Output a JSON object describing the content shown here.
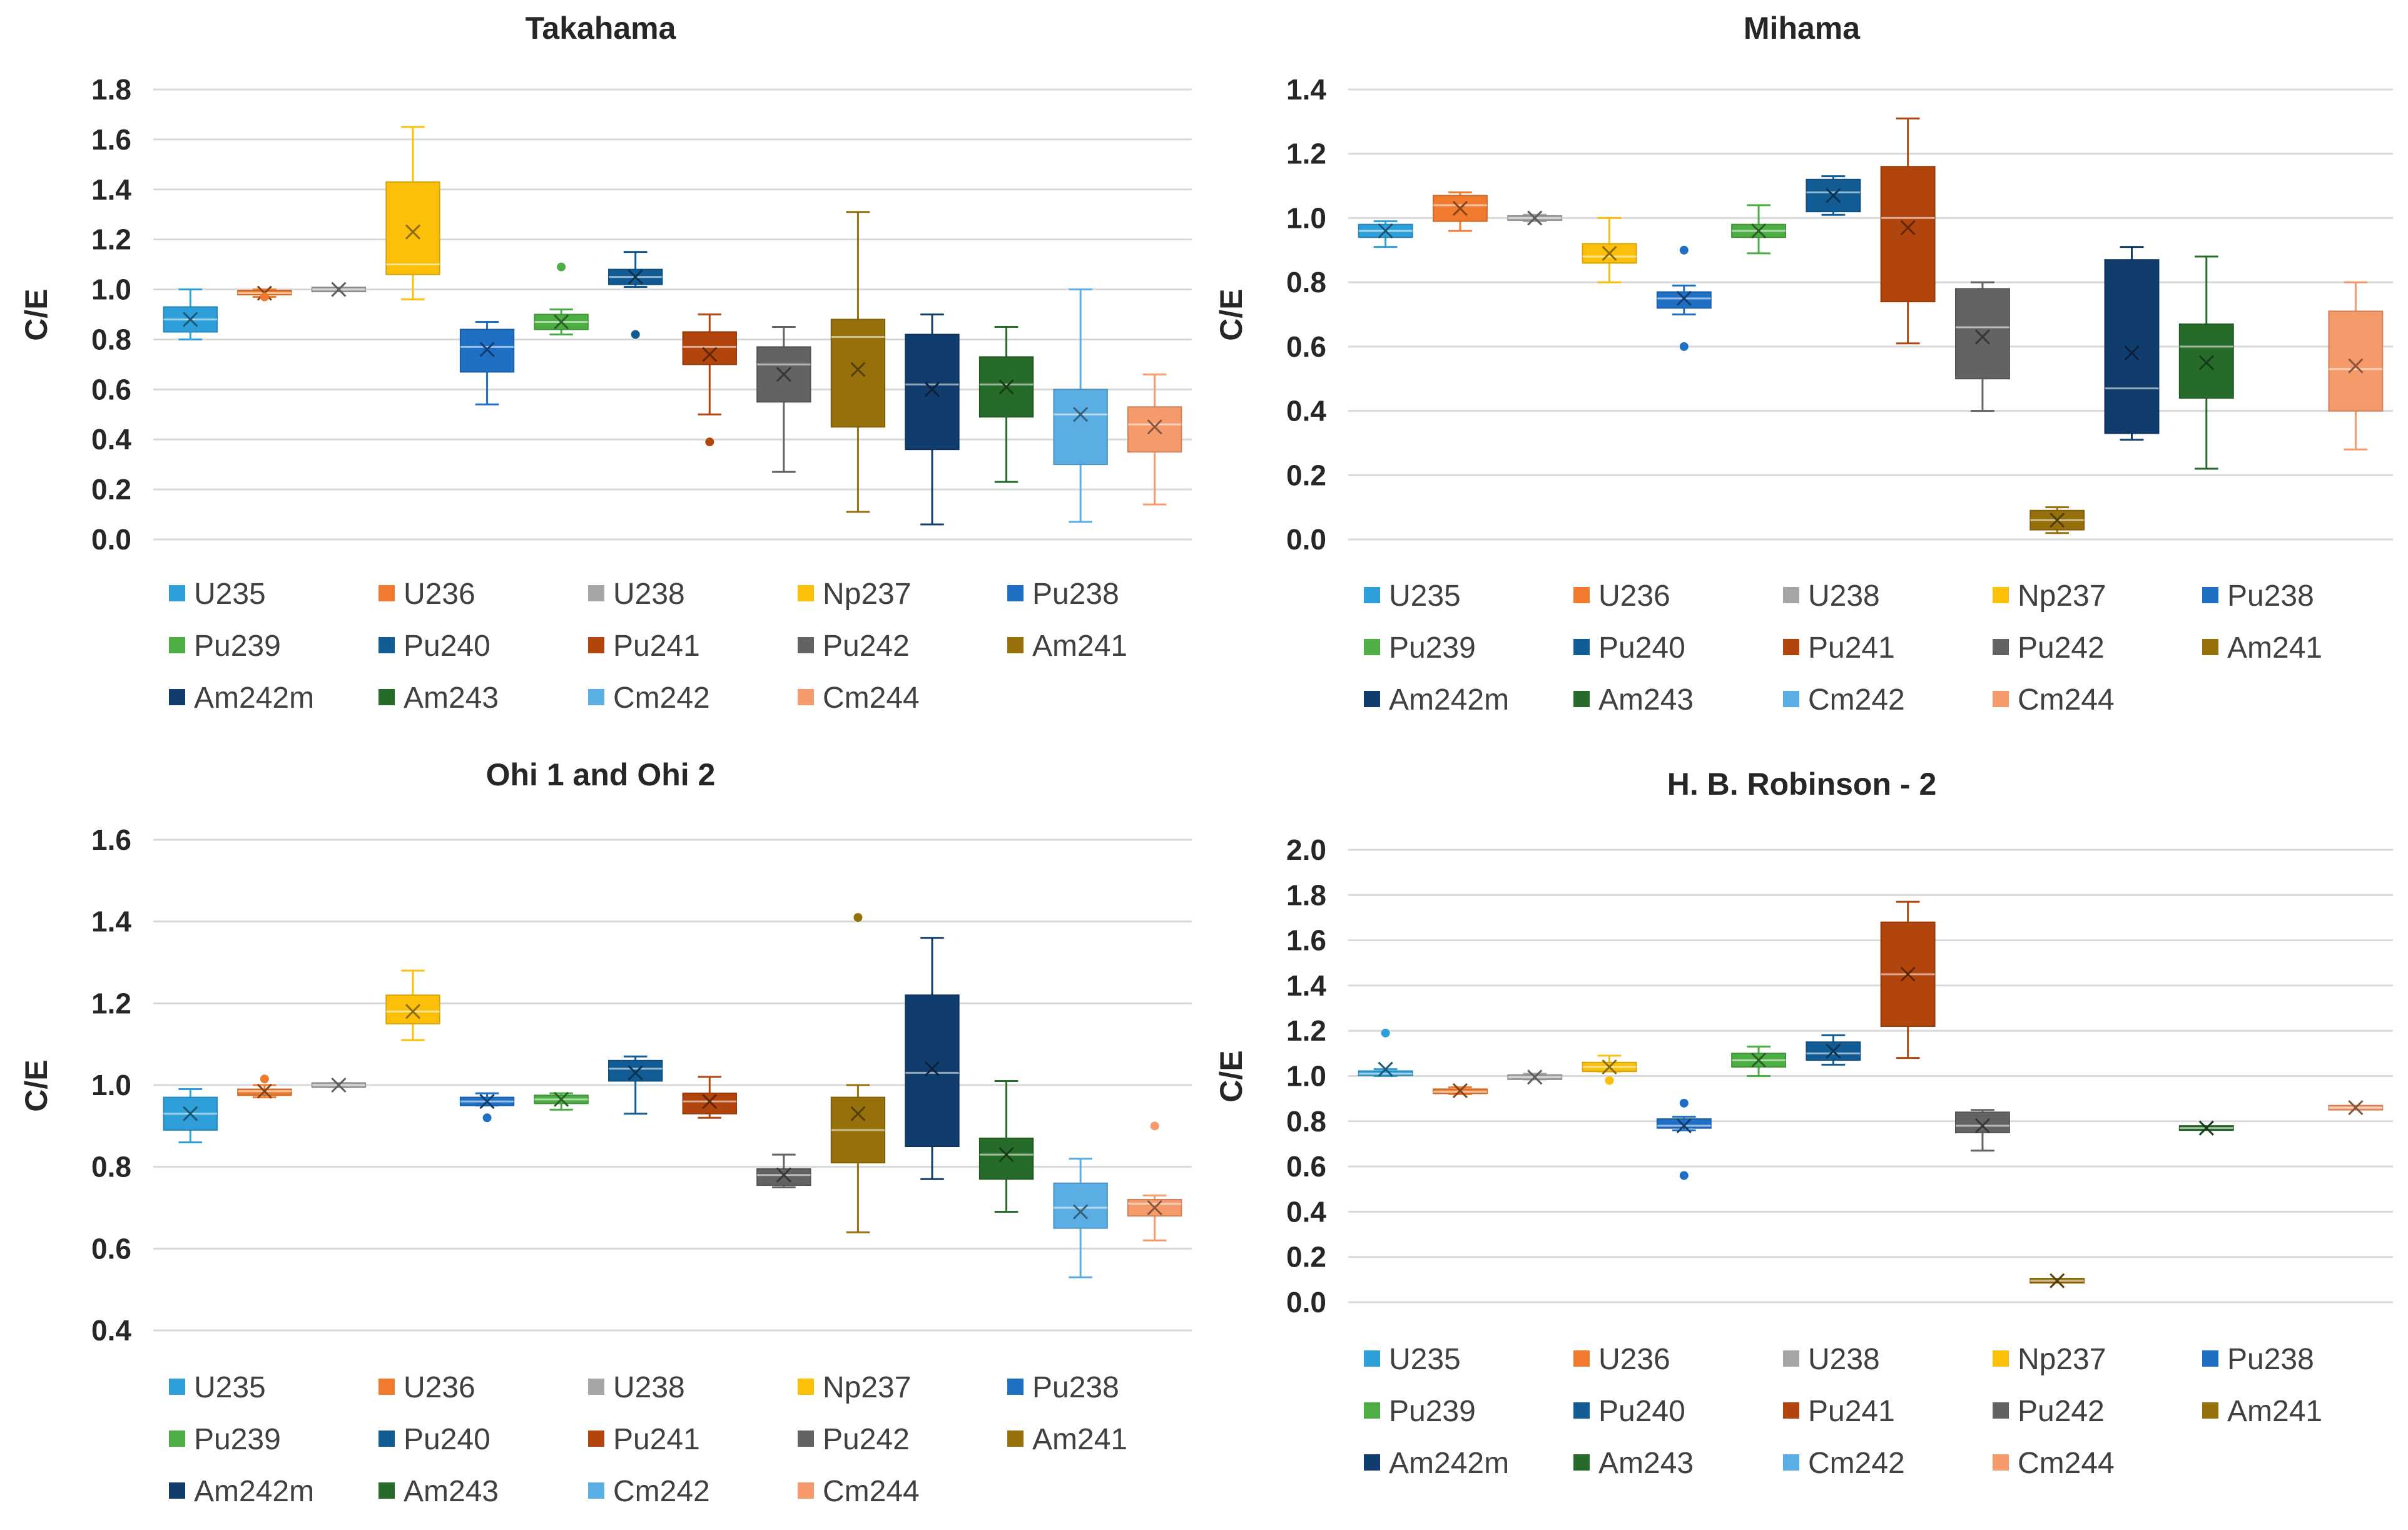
{
  "series_names": [
    "U235",
    "U236",
    "U238",
    "Np237",
    "Pu238",
    "Pu239",
    "Pu240",
    "Pu241",
    "Pu242",
    "Am241",
    "Am242m",
    "Am243",
    "Cm242",
    "Cm244"
  ],
  "series_colors": {
    "U235": "#2e9fd9",
    "U236": "#f07b2f",
    "U238": "#a6a6a6",
    "Np237": "#fcc00a",
    "Pu238": "#1f6fc4",
    "Pu239": "#4cae43",
    "Pu240": "#115c94",
    "Pu241": "#b2450d",
    "Pu242": "#636363",
    "Am241": "#96700a",
    "Am242m": "#113c6e",
    "Am243": "#276b2a",
    "Cm242": "#5aaee3",
    "Cm244": "#f59a6a"
  },
  "chart_data": [
    {
      "type": "box",
      "title": "Takahama",
      "ylabel": "C/E",
      "ylim": [
        0,
        1.8
      ],
      "yticks": [
        "0.0",
        "0.2",
        "0.4",
        "0.6",
        "0.8",
        "1.0",
        "1.2",
        "1.4",
        "1.6",
        "1.8"
      ],
      "legend_position": "bottom",
      "boxes": [
        {
          "series": "U235",
          "min": 0.8,
          "q1": 0.83,
          "median": 0.88,
          "q3": 0.93,
          "max": 1.0,
          "mean": 0.88,
          "outliers": []
        },
        {
          "series": "U236",
          "min": 0.97,
          "q1": 0.98,
          "median": 0.985,
          "q3": 0.995,
          "max": 1.0,
          "mean": 0.985,
          "outliers": [
            0.97
          ]
        },
        {
          "series": "U238",
          "min": 0.995,
          "q1": 0.998,
          "median": 1.0,
          "q3": 1.002,
          "max": 1.005,
          "mean": 1.0,
          "outliers": []
        },
        {
          "series": "Np237",
          "min": 0.96,
          "q1": 1.06,
          "median": 1.1,
          "q3": 1.43,
          "max": 1.65,
          "mean": 1.23,
          "outliers": []
        },
        {
          "series": "Pu238",
          "min": 0.54,
          "q1": 0.67,
          "median": 0.77,
          "q3": 0.84,
          "max": 0.87,
          "mean": 0.76,
          "outliers": []
        },
        {
          "series": "Pu239",
          "min": 0.82,
          "q1": 0.84,
          "median": 0.87,
          "q3": 0.9,
          "max": 0.92,
          "mean": 0.87,
          "outliers": [
            1.09
          ]
        },
        {
          "series": "Pu240",
          "min": 1.01,
          "q1": 1.02,
          "median": 1.05,
          "q3": 1.08,
          "max": 1.15,
          "mean": 1.05,
          "outliers": [
            0.82
          ]
        },
        {
          "series": "Pu241",
          "min": 0.5,
          "q1": 0.7,
          "median": 0.77,
          "q3": 0.83,
          "max": 0.9,
          "mean": 0.74,
          "outliers": [
            0.39
          ]
        },
        {
          "series": "Pu242",
          "min": 0.27,
          "q1": 0.55,
          "median": 0.7,
          "q3": 0.77,
          "max": 0.85,
          "mean": 0.66,
          "outliers": []
        },
        {
          "series": "Am241",
          "min": 0.11,
          "q1": 0.45,
          "median": 0.81,
          "q3": 0.88,
          "max": 1.31,
          "mean": 0.68,
          "outliers": []
        },
        {
          "series": "Am242m",
          "min": 0.06,
          "q1": 0.36,
          "median": 0.62,
          "q3": 0.82,
          "max": 0.9,
          "mean": 0.6,
          "outliers": []
        },
        {
          "series": "Am243",
          "min": 0.23,
          "q1": 0.49,
          "median": 0.62,
          "q3": 0.73,
          "max": 0.85,
          "mean": 0.61,
          "outliers": []
        },
        {
          "series": "Cm242",
          "min": 0.07,
          "q1": 0.3,
          "median": 0.5,
          "q3": 0.6,
          "max": 1.0,
          "mean": 0.5,
          "outliers": []
        },
        {
          "series": "Cm244",
          "min": 0.14,
          "q1": 0.35,
          "median": 0.46,
          "q3": 0.53,
          "max": 0.66,
          "mean": 0.45,
          "outliers": []
        }
      ]
    },
    {
      "type": "box",
      "title": "Mihama",
      "ylabel": "C/E",
      "ylim": [
        0,
        1.4
      ],
      "yticks": [
        "0.0",
        "0.2",
        "0.4",
        "0.6",
        "0.8",
        "1.0",
        "1.2",
        "1.4"
      ],
      "legend_position": "bottom",
      "boxes": [
        {
          "series": "U235",
          "min": 0.91,
          "q1": 0.94,
          "median": 0.96,
          "q3": 0.98,
          "max": 0.99,
          "mean": 0.96,
          "outliers": []
        },
        {
          "series": "U236",
          "min": 0.96,
          "q1": 0.99,
          "median": 1.04,
          "q3": 1.07,
          "max": 1.08,
          "mean": 1.03,
          "outliers": []
        },
        {
          "series": "U238",
          "min": 0.99,
          "q1": 0.995,
          "median": 1.0,
          "q3": 1.005,
          "max": 1.01,
          "mean": 1.0,
          "outliers": []
        },
        {
          "series": "Np237",
          "min": 0.8,
          "q1": 0.86,
          "median": 0.88,
          "q3": 0.92,
          "max": 1.0,
          "mean": 0.89,
          "outliers": []
        },
        {
          "series": "Pu238",
          "min": 0.7,
          "q1": 0.72,
          "median": 0.75,
          "q3": 0.77,
          "max": 0.79,
          "mean": 0.75,
          "outliers": [
            0.9,
            0.6
          ]
        },
        {
          "series": "Pu239",
          "min": 0.89,
          "q1": 0.94,
          "median": 0.96,
          "q3": 0.98,
          "max": 1.04,
          "mean": 0.96,
          "outliers": []
        },
        {
          "series": "Pu240",
          "min": 1.01,
          "q1": 1.02,
          "median": 1.08,
          "q3": 1.12,
          "max": 1.13,
          "mean": 1.07,
          "outliers": []
        },
        {
          "series": "Pu241",
          "min": 0.61,
          "q1": 0.74,
          "median": 1.0,
          "q3": 1.16,
          "max": 1.31,
          "mean": 0.97,
          "outliers": []
        },
        {
          "series": "Pu242",
          "min": 0.4,
          "q1": 0.5,
          "median": 0.66,
          "q3": 0.78,
          "max": 0.8,
          "mean": 0.63,
          "outliers": []
        },
        {
          "series": "Am241",
          "min": 0.02,
          "q1": 0.03,
          "median": 0.06,
          "q3": 0.09,
          "max": 0.1,
          "mean": 0.06,
          "outliers": []
        },
        {
          "series": "Am242m",
          "min": 0.31,
          "q1": 0.33,
          "median": 0.47,
          "q3": 0.87,
          "max": 0.91,
          "mean": 0.58,
          "outliers": []
        },
        {
          "series": "Am243",
          "min": 0.22,
          "q1": 0.44,
          "median": 0.6,
          "q3": 0.67,
          "max": 0.88,
          "mean": 0.55,
          "outliers": []
        },
        {
          "series": "Cm242",
          "min": null,
          "q1": null,
          "median": null,
          "q3": null,
          "max": null,
          "mean": null,
          "outliers": []
        },
        {
          "series": "Cm244",
          "min": 0.28,
          "q1": 0.4,
          "median": 0.53,
          "q3": 0.71,
          "max": 0.8,
          "mean": 0.54,
          "outliers": []
        }
      ]
    },
    {
      "type": "box",
      "title": "Ohi 1 and Ohi 2",
      "ylabel": "C/E",
      "ylim": [
        0.4,
        1.6
      ],
      "yticks": [
        "0.4",
        "0.6",
        "0.8",
        "1.0",
        "1.2",
        "1.4",
        "1.6"
      ],
      "legend_position": "bottom",
      "boxes": [
        {
          "series": "U235",
          "min": 0.86,
          "q1": 0.89,
          "median": 0.93,
          "q3": 0.97,
          "max": 0.99,
          "mean": 0.93,
          "outliers": []
        },
        {
          "series": "U236",
          "min": 0.97,
          "q1": 0.975,
          "median": 0.985,
          "q3": 0.99,
          "max": 1.0,
          "mean": 0.985,
          "outliers": [
            1.015
          ]
        },
        {
          "series": "U238",
          "min": 0.995,
          "q1": 0.998,
          "median": 1.0,
          "q3": 1.002,
          "max": 1.005,
          "mean": 1.0,
          "outliers": []
        },
        {
          "series": "Np237",
          "min": 1.11,
          "q1": 1.15,
          "median": 1.18,
          "q3": 1.22,
          "max": 1.28,
          "mean": 1.18,
          "outliers": []
        },
        {
          "series": "Pu238",
          "min": 0.95,
          "q1": 0.95,
          "median": 0.96,
          "q3": 0.97,
          "max": 0.98,
          "mean": 0.96,
          "outliers": [
            0.92
          ]
        },
        {
          "series": "Pu239",
          "min": 0.94,
          "q1": 0.955,
          "median": 0.965,
          "q3": 0.975,
          "max": 0.98,
          "mean": 0.965,
          "outliers": []
        },
        {
          "series": "Pu240",
          "min": 0.93,
          "q1": 1.01,
          "median": 1.04,
          "q3": 1.06,
          "max": 1.07,
          "mean": 1.03,
          "outliers": []
        },
        {
          "series": "Pu241",
          "min": 0.92,
          "q1": 0.93,
          "median": 0.96,
          "q3": 0.98,
          "max": 1.02,
          "mean": 0.96,
          "outliers": []
        },
        {
          "series": "Pu242",
          "min": 0.75,
          "q1": 0.755,
          "median": 0.78,
          "q3": 0.795,
          "max": 0.83,
          "mean": 0.78,
          "outliers": []
        },
        {
          "series": "Am241",
          "min": 0.64,
          "q1": 0.81,
          "median": 0.89,
          "q3": 0.97,
          "max": 1.0,
          "mean": 0.93,
          "outliers": [
            1.41
          ]
        },
        {
          "series": "Am242m",
          "min": 0.77,
          "q1": 0.85,
          "median": 1.03,
          "q3": 1.22,
          "max": 1.36,
          "mean": 1.04,
          "outliers": []
        },
        {
          "series": "Am243",
          "min": 0.69,
          "q1": 0.77,
          "median": 0.83,
          "q3": 0.87,
          "max": 1.01,
          "mean": 0.83,
          "outliers": []
        },
        {
          "series": "Cm242",
          "min": 0.53,
          "q1": 0.65,
          "median": 0.7,
          "q3": 0.76,
          "max": 0.82,
          "mean": 0.69,
          "outliers": []
        },
        {
          "series": "Cm244",
          "min": 0.62,
          "q1": 0.68,
          "median": 0.71,
          "q3": 0.72,
          "max": 0.73,
          "mean": 0.7,
          "outliers": [
            0.9
          ]
        }
      ]
    },
    {
      "type": "box",
      "title": "H. B. Robinson - 2",
      "ylabel": "C/E",
      "ylim": [
        0,
        2.0
      ],
      "yticks": [
        "0.0",
        "0.2",
        "0.4",
        "0.6",
        "0.8",
        "1.0",
        "1.2",
        "1.4",
        "1.6",
        "1.8",
        "2.0"
      ],
      "legend_position": "bottom",
      "boxes": [
        {
          "series": "U235",
          "min": 1.0,
          "q1": 1.005,
          "median": 1.01,
          "q3": 1.02,
          "max": 1.03,
          "mean": 1.03,
          "outliers": [
            1.19
          ]
        },
        {
          "series": "U236",
          "min": 0.92,
          "q1": 0.925,
          "median": 0.93,
          "q3": 0.94,
          "max": 0.95,
          "mean": 0.935,
          "outliers": []
        },
        {
          "series": "U238",
          "min": 0.985,
          "q1": 0.99,
          "median": 0.995,
          "q3": 1.0,
          "max": 1.01,
          "mean": 0.995,
          "outliers": []
        },
        {
          "series": "Np237",
          "min": 1.02,
          "q1": 1.02,
          "median": 1.04,
          "q3": 1.06,
          "max": 1.09,
          "mean": 1.04,
          "outliers": [
            0.98
          ]
        },
        {
          "series": "Pu238",
          "min": 0.76,
          "q1": 0.77,
          "median": 0.78,
          "q3": 0.81,
          "max": 0.82,
          "mean": 0.78,
          "outliers": [
            0.88,
            0.56
          ]
        },
        {
          "series": "Pu239",
          "min": 1.0,
          "q1": 1.04,
          "median": 1.07,
          "q3": 1.1,
          "max": 1.13,
          "mean": 1.07,
          "outliers": []
        },
        {
          "series": "Pu240",
          "min": 1.05,
          "q1": 1.07,
          "median": 1.1,
          "q3": 1.15,
          "max": 1.18,
          "mean": 1.11,
          "outliers": []
        },
        {
          "series": "Pu241",
          "min": 1.08,
          "q1": 1.22,
          "median": 1.45,
          "q3": 1.68,
          "max": 1.77,
          "mean": 1.45,
          "outliers": []
        },
        {
          "series": "Pu242",
          "min": 0.67,
          "q1": 0.75,
          "median": 0.78,
          "q3": 0.84,
          "max": 0.85,
          "mean": 0.78,
          "outliers": []
        },
        {
          "series": "Am241",
          "min": 0.095,
          "q1": 0.095,
          "median": 0.095,
          "q3": 0.095,
          "max": 0.095,
          "mean": 0.095,
          "outliers": []
        },
        {
          "series": "Am242m",
          "min": null,
          "q1": null,
          "median": null,
          "q3": null,
          "max": null,
          "mean": null,
          "outliers": []
        },
        {
          "series": "Am243",
          "min": 0.77,
          "q1": 0.77,
          "median": 0.77,
          "q3": 0.77,
          "max": 0.77,
          "mean": 0.77,
          "outliers": []
        },
        {
          "series": "Cm242",
          "min": null,
          "q1": null,
          "median": null,
          "q3": null,
          "max": null,
          "mean": null,
          "outliers": []
        },
        {
          "series": "Cm244",
          "min": 0.86,
          "q1": 0.86,
          "median": 0.86,
          "q3": 0.86,
          "max": 0.86,
          "mean": 0.86,
          "outliers": []
        }
      ]
    }
  ]
}
